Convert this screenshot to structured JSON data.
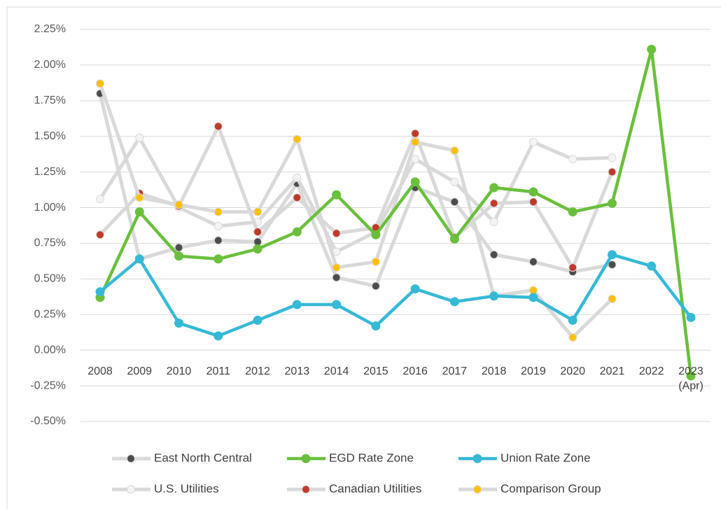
{
  "chart_data": {
    "type": "line",
    "categories": [
      "2008",
      "2009",
      "2010",
      "2011",
      "2012",
      "2013",
      "2014",
      "2015",
      "2016",
      "2017",
      "2018",
      "2019",
      "2020",
      "2021",
      "2022",
      "2023 (Apr)"
    ],
    "ylim": [
      -0.5,
      2.25
    ],
    "yticks": [
      {
        "value": -0.5,
        "label": "-0.50%"
      },
      {
        "value": -0.25,
        "label": "-0.25%"
      },
      {
        "value": 0,
        "label": "0.00%"
      },
      {
        "value": 0.25,
        "label": "0.25%"
      },
      {
        "value": 0.5,
        "label": "0.50%"
      },
      {
        "value": 0.75,
        "label": "0.75%"
      },
      {
        "value": 1,
        "label": "1.00%"
      },
      {
        "value": 1.25,
        "label": "1.25%"
      },
      {
        "value": 1.5,
        "label": "1.50%"
      },
      {
        "value": 1.75,
        "label": "1.75%"
      },
      {
        "value": 2,
        "label": "2.00%"
      },
      {
        "value": 2.25,
        "label": "2.25%"
      }
    ],
    "grid": true,
    "legend": "bottom",
    "series": [
      {
        "name": "East North Central",
        "color": "#4d4d4d",
        "line_color": "#d9d9d9",
        "values": [
          1.8,
          0.64,
          0.72,
          0.77,
          0.76,
          1.17,
          0.51,
          0.45,
          1.14,
          1.04,
          0.67,
          0.62,
          0.55,
          0.6,
          null,
          null
        ]
      },
      {
        "name": "EGD Rate Zone",
        "color": "#6abf3c",
        "line_color": "#6abf3c",
        "values": [
          0.37,
          0.97,
          0.66,
          0.64,
          0.71,
          0.83,
          1.09,
          0.81,
          1.18,
          0.78,
          1.14,
          1.11,
          0.97,
          1.03,
          2.11,
          -0.18
        ]
      },
      {
        "name": "Union Rate Zone",
        "color": "#36b9d6",
        "line_color": "#36b9d6",
        "values": [
          0.41,
          0.64,
          0.19,
          0.1,
          0.21,
          0.32,
          0.32,
          0.17,
          0.43,
          0.34,
          0.38,
          0.37,
          0.21,
          0.67,
          0.59,
          0.23
        ]
      },
      {
        "name": "U.S. Utilities",
        "color": "#f4f4f4",
        "line_color": "#d9d9d9",
        "values": [
          1.06,
          1.49,
          1.0,
          0.87,
          0.9,
          1.21,
          0.69,
          0.83,
          1.34,
          1.18,
          0.9,
          1.46,
          1.34,
          1.35,
          null,
          null
        ]
      },
      {
        "name": "Canadian Utilities",
        "color": "#c0392b",
        "line_color": "#d9d9d9",
        "values": [
          0.81,
          1.1,
          1.01,
          1.57,
          0.83,
          1.07,
          0.82,
          0.86,
          1.52,
          0.79,
          1.03,
          1.04,
          0.58,
          1.25,
          null,
          null
        ]
      },
      {
        "name": "Comparison Group",
        "color": "#ffc000",
        "line_color": "#d9d9d9",
        "values": [
          1.87,
          1.07,
          1.02,
          0.97,
          0.97,
          1.48,
          0.58,
          0.62,
          1.46,
          1.4,
          0.38,
          0.42,
          0.09,
          0.36,
          null,
          null
        ]
      }
    ]
  }
}
